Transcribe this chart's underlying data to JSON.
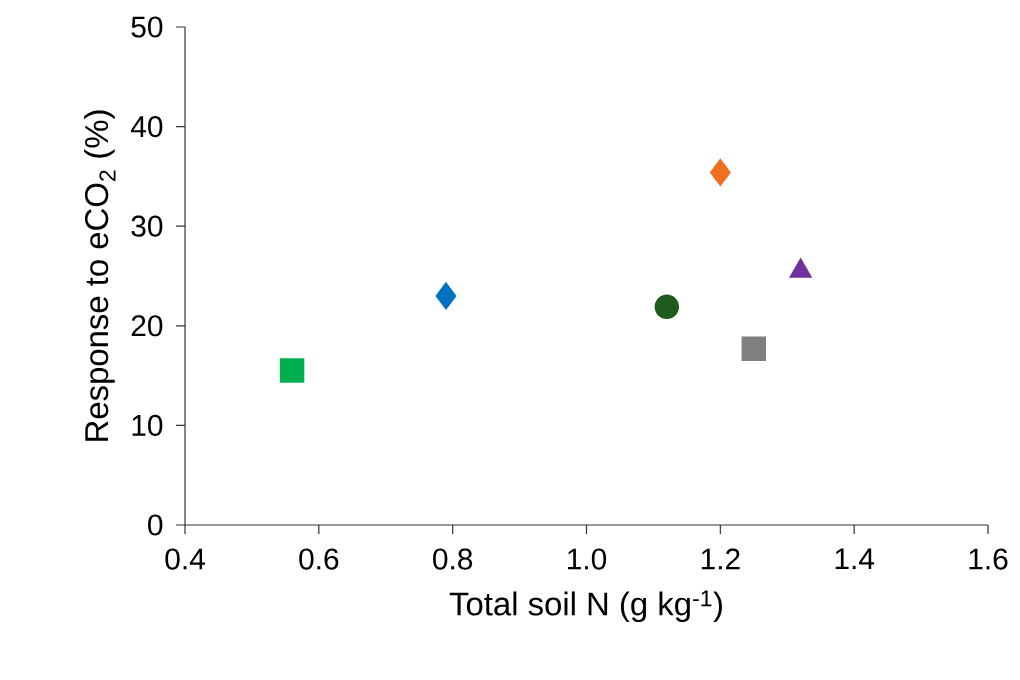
{
  "chart_data": {
    "type": "scatter",
    "xlabel": "Total soil N (g kg$^{-1}$)",
    "ylabel": "Response to eCO$_{2}$ (%)",
    "xlim": [
      0.4,
      1.6
    ],
    "ylim": [
      0,
      50
    ],
    "xticks": [
      0.4,
      0.6,
      0.8,
      {
        "value": 1.0,
        "label": "1.0"
      },
      1.2,
      1.4,
      1.6
    ],
    "yticks": [
      0,
      10,
      20,
      30,
      40,
      50
    ],
    "grid": false,
    "series": [
      {
        "color": "#00b050",
        "marker": "square",
        "x": [
          0.56
        ],
        "values": [
          15.5
        ]
      },
      {
        "color": "#0070c0",
        "marker": "diamond",
        "x": [
          0.79
        ],
        "values": [
          23.0
        ]
      },
      {
        "color": "#1e5c1e",
        "marker": "circle",
        "x": [
          1.12
        ],
        "values": [
          21.9
        ]
      },
      {
        "color": "#f07020",
        "marker": "diamond",
        "x": [
          1.2
        ],
        "values": [
          35.4
        ]
      },
      {
        "color": "#808080",
        "marker": "square",
        "x": [
          1.25
        ],
        "values": [
          17.7
        ]
      },
      {
        "color": "#7030a0",
        "marker": "triangle",
        "x": [
          1.32
        ],
        "values": [
          25.5
        ]
      }
    ]
  }
}
